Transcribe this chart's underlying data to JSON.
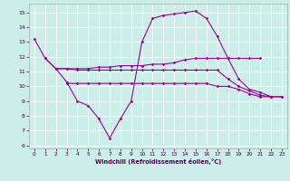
{
  "xlabel": "Windchill (Refroidissement éolien,°C)",
  "bg_color": "#cceee8",
  "line_color": "#990099",
  "grid_color": "#ffffff",
  "xlim": [
    -0.5,
    23.5
  ],
  "ylim": [
    5.8,
    15.6
  ],
  "yticks": [
    6,
    7,
    8,
    9,
    10,
    11,
    12,
    13,
    14,
    15
  ],
  "xticks": [
    0,
    1,
    2,
    3,
    4,
    5,
    6,
    7,
    8,
    9,
    10,
    11,
    12,
    13,
    14,
    15,
    16,
    17,
    18,
    19,
    20,
    21,
    22,
    23
  ],
  "series1_x": [
    0,
    1,
    2,
    3,
    4,
    5,
    6,
    7,
    8,
    9,
    10,
    11,
    12,
    13,
    14,
    15,
    16,
    17,
    18,
    19,
    20,
    21,
    22
  ],
  "series1_y": [
    13.2,
    11.9,
    11.2,
    10.3,
    9.0,
    8.7,
    7.8,
    6.5,
    7.8,
    9.0,
    13.0,
    14.6,
    14.8,
    14.9,
    15.0,
    15.1,
    14.6,
    13.4,
    11.9,
    10.5,
    9.8,
    9.6,
    9.3
  ],
  "series2_x": [
    1,
    2,
    3,
    4,
    5,
    6,
    7,
    8,
    9,
    10,
    11,
    12,
    13,
    14,
    15,
    16,
    17,
    18,
    19,
    20,
    21
  ],
  "series2_y": [
    11.9,
    11.2,
    11.2,
    11.2,
    11.2,
    11.3,
    11.3,
    11.4,
    11.4,
    11.4,
    11.5,
    11.5,
    11.6,
    11.8,
    11.9,
    11.9,
    11.9,
    11.9,
    11.9,
    11.9,
    11.9
  ],
  "series3_x": [
    2,
    3,
    4,
    5,
    6,
    7,
    8,
    9,
    10,
    11,
    12,
    13,
    14,
    15,
    16,
    17,
    18,
    19,
    20,
    21,
    22,
    23
  ],
  "series3_y": [
    11.2,
    11.2,
    11.1,
    11.1,
    11.1,
    11.1,
    11.1,
    11.1,
    11.1,
    11.1,
    11.1,
    11.1,
    11.1,
    11.1,
    11.1,
    11.1,
    10.5,
    10.0,
    9.7,
    9.4,
    9.3,
    9.3
  ],
  "series4_x": [
    3,
    4,
    5,
    6,
    7,
    8,
    9,
    10,
    11,
    12,
    13,
    14,
    15,
    16,
    17,
    18,
    19,
    20,
    21,
    22,
    23
  ],
  "series4_y": [
    10.2,
    10.2,
    10.2,
    10.2,
    10.2,
    10.2,
    10.2,
    10.2,
    10.2,
    10.2,
    10.2,
    10.2,
    10.2,
    10.2,
    10.0,
    10.0,
    9.8,
    9.5,
    9.3,
    9.3,
    9.3
  ]
}
